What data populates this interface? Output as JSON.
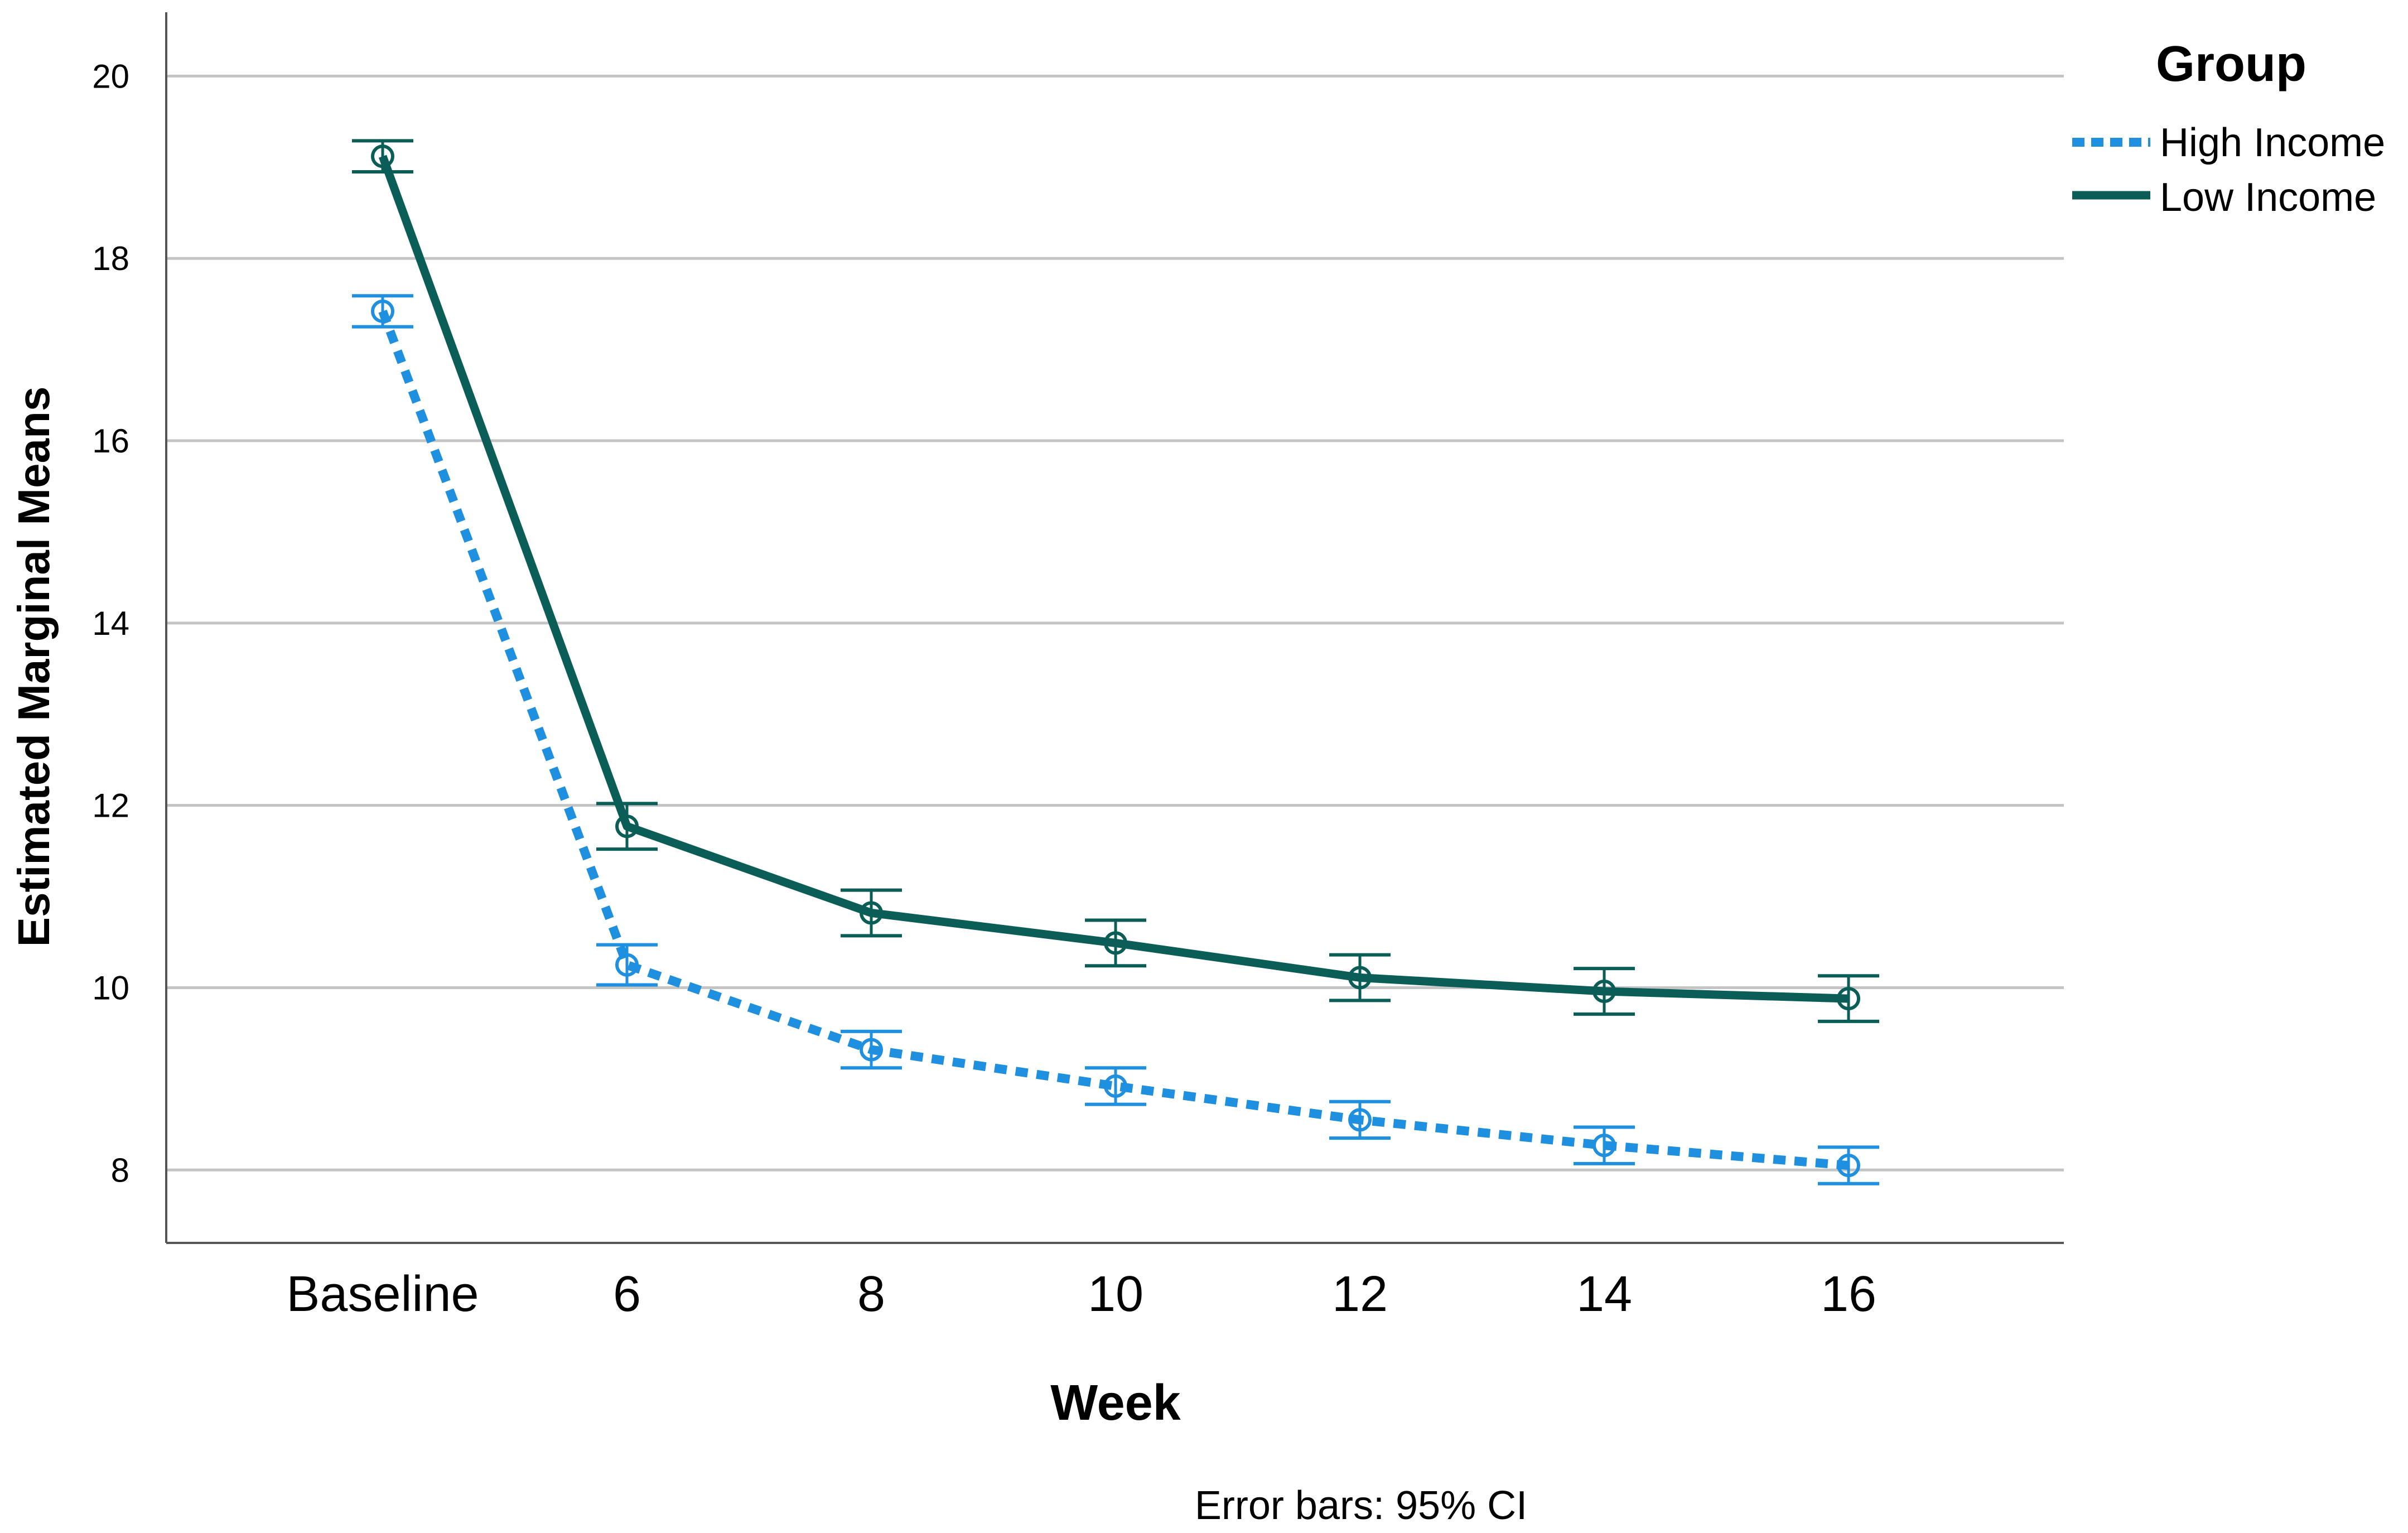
{
  "chart_data": {
    "type": "line",
    "title": "",
    "xlabel": "Week",
    "ylabel": "Estimated Marginal Means",
    "categories": [
      "Baseline",
      "6",
      "8",
      "10",
      "12",
      "14",
      "16"
    ],
    "ylim": [
      7.2,
      20.7
    ],
    "yticks": [
      8,
      10,
      12,
      14,
      16,
      18,
      20
    ],
    "grid": "horizontal",
    "legend_title": "Group",
    "legend_position": "top-right",
    "note": "Error bars: 95% CI",
    "series": [
      {
        "name": "High Income",
        "style": "dotted",
        "color": "#1f8fe0",
        "values": [
          17.42,
          10.25,
          9.32,
          8.92,
          8.55,
          8.27,
          8.05
        ],
        "ci_low": [
          17.25,
          10.03,
          9.12,
          8.72,
          8.35,
          8.07,
          7.85
        ],
        "ci_high": [
          17.59,
          10.47,
          9.52,
          9.12,
          8.75,
          8.47,
          8.25
        ]
      },
      {
        "name": "Low Income",
        "style": "solid",
        "color": "#0b5e57",
        "values": [
          19.12,
          11.77,
          10.82,
          10.49,
          10.11,
          9.96,
          9.88
        ],
        "ci_low": [
          18.95,
          11.52,
          10.57,
          10.24,
          9.86,
          9.71,
          9.63
        ],
        "ci_high": [
          19.29,
          12.02,
          11.07,
          10.74,
          10.36,
          10.21,
          10.13
        ]
      }
    ]
  }
}
